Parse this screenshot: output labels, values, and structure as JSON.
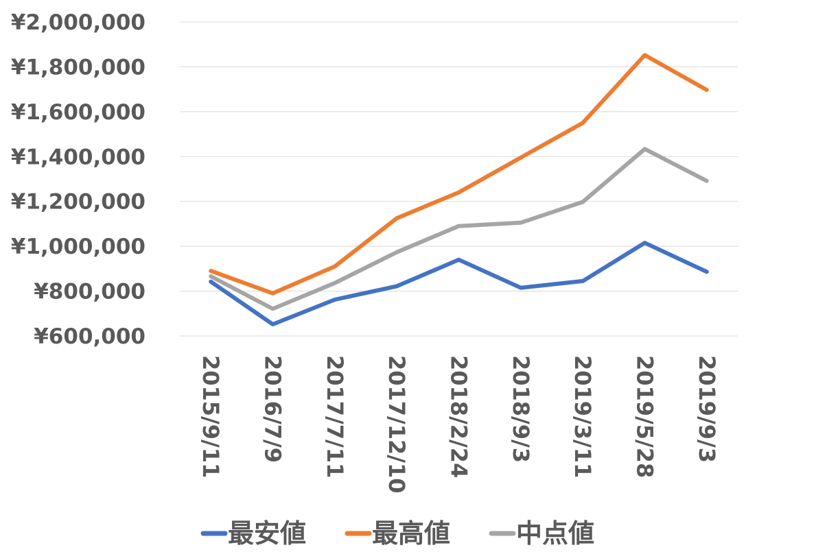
{
  "chart_data": {
    "type": "line",
    "title": "",
    "xlabel": "",
    "ylabel": "",
    "categories": [
      "2015/9/11",
      "2016/7/9",
      "2017/7/11",
      "2017/12/10",
      "2018/2/24",
      "2018/9/3",
      "2019/3/11",
      "2019/5/28",
      "2019/9/3"
    ],
    "ylim": [
      600000,
      2000000
    ],
    "yticks": [
      600000,
      800000,
      1000000,
      1200000,
      1400000,
      1600000,
      1800000,
      2000000
    ],
    "ytick_labels": [
      "¥600,000",
      "¥800,000",
      "¥1,000,000",
      "¥1,200,000",
      "¥1,400,000",
      "¥1,600,000",
      "¥1,800,000",
      "¥2,000,000"
    ],
    "grid": true,
    "legend_position": "bottom",
    "series": [
      {
        "name": "最安値",
        "color": "#4472c4",
        "values": [
          842000,
          652000,
          762000,
          822000,
          940000,
          815000,
          845000,
          1015000,
          886000
        ]
      },
      {
        "name": "最高値",
        "color": "#ed7d31",
        "values": [
          890000,
          790000,
          910000,
          1125000,
          1240000,
          1395000,
          1550000,
          1852000,
          1697000
        ]
      },
      {
        "name": "中点値",
        "color": "#a5a5a5",
        "values": [
          866000,
          721000,
          836000,
          973500,
          1090000,
          1105000,
          1197500,
          1433500,
          1291500
        ]
      }
    ]
  }
}
